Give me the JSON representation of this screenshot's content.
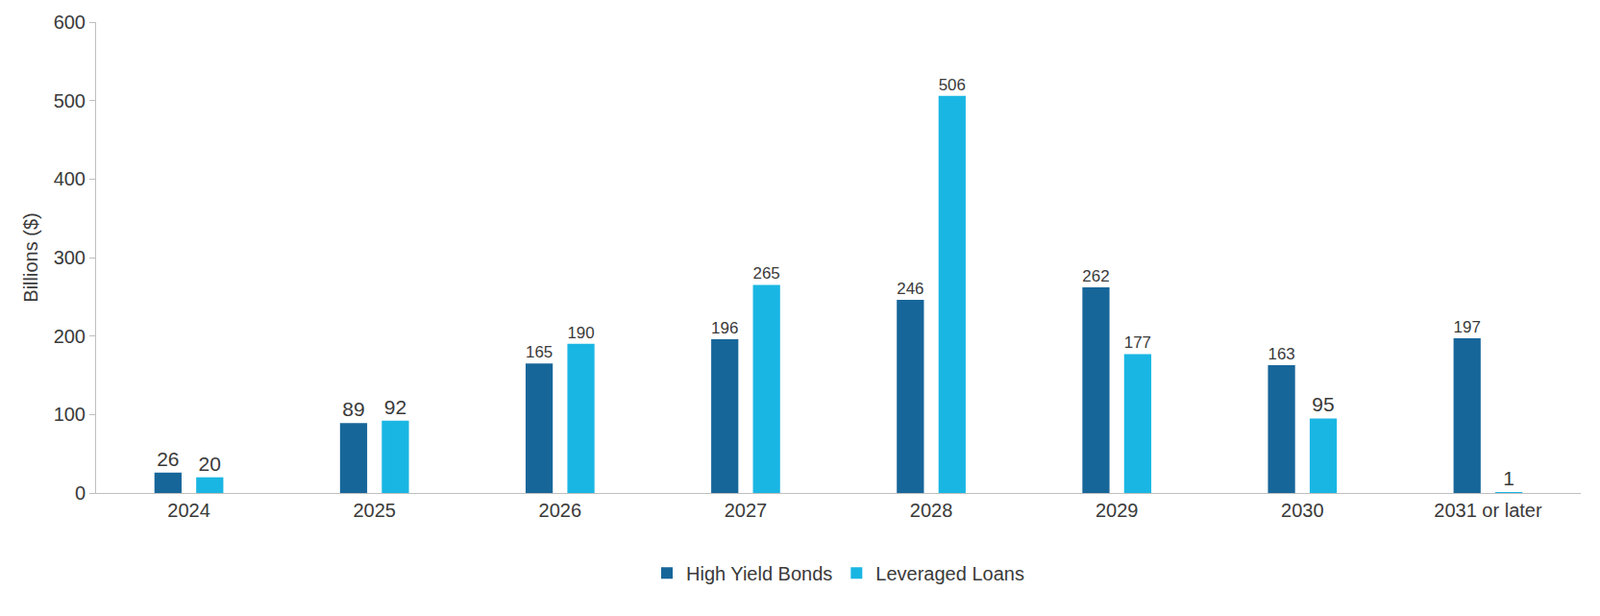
{
  "chart_data": {
    "type": "bar",
    "y_label": "Billions ($)",
    "categories": [
      "2024",
      "2025",
      "2026",
      "2027",
      "2028",
      "2029",
      "2030",
      "2031 or later"
    ],
    "series": [
      {
        "name": "High Yield Bonds",
        "color": "#17669A",
        "values": [
          26,
          89,
          165,
          196,
          246,
          262,
          163,
          197
        ]
      },
      {
        "name": "Leveraged Loans",
        "color": "#1AB6E3",
        "values": [
          20,
          92,
          190,
          265,
          506,
          177,
          95,
          1
        ]
      }
    ],
    "ylim": [
      0,
      600
    ],
    "yticks": [
      0,
      100,
      200,
      300,
      400,
      500,
      600
    ],
    "grid": false,
    "legend": "bottom",
    "data_labels": true
  }
}
